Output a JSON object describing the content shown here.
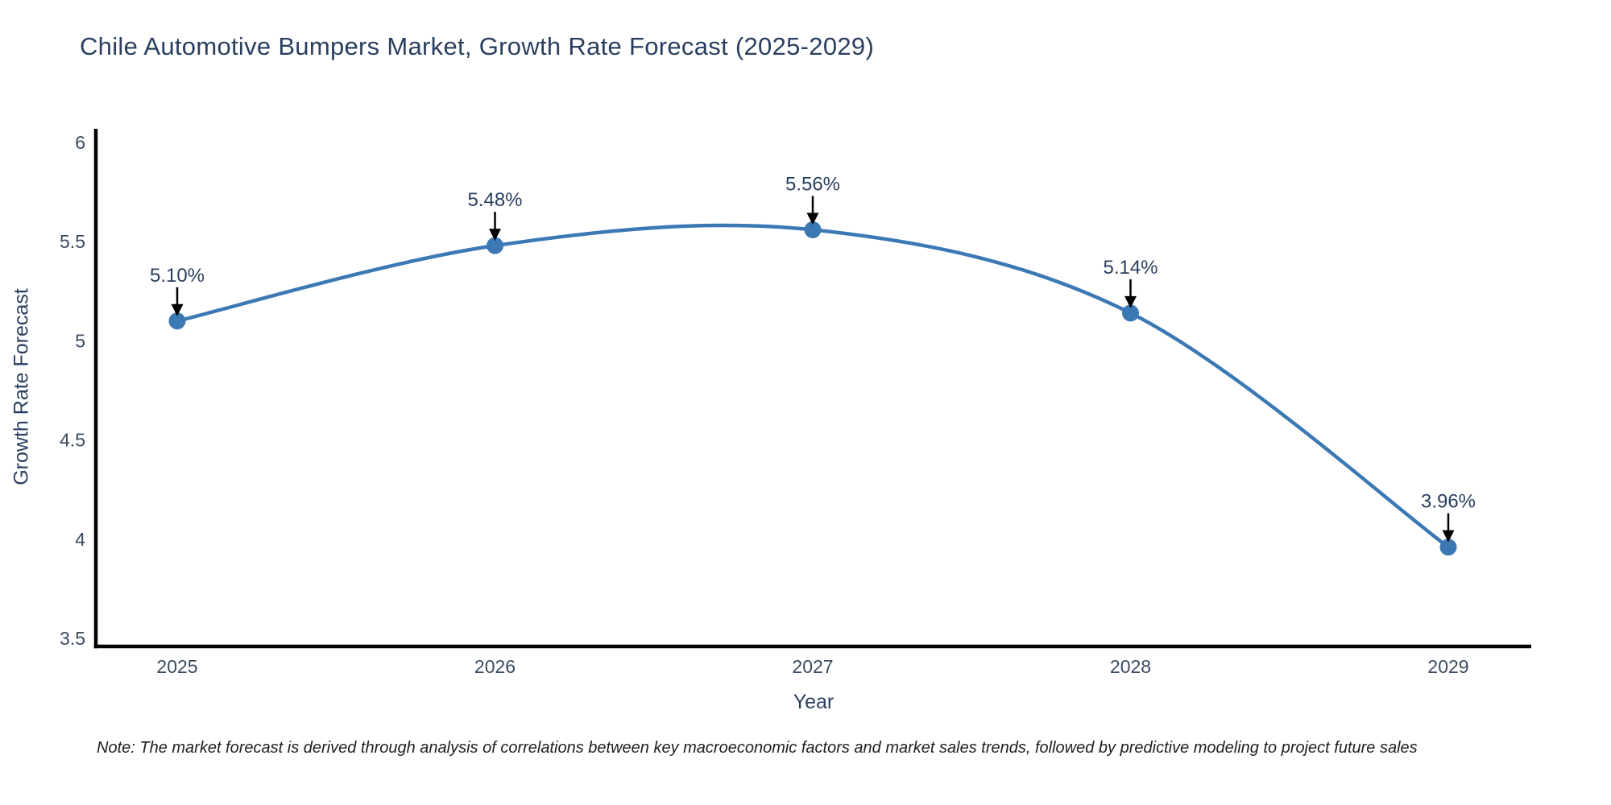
{
  "page": {
    "background": "#ffffff"
  },
  "chart_data": {
    "type": "line",
    "title": "Chile Automotive Bumpers Market, Growth Rate Forecast (2025-2029)",
    "xlabel": "Year",
    "ylabel": "Growth Rate Forecast",
    "categories": [
      "2025",
      "2026",
      "2027",
      "2028",
      "2029"
    ],
    "values": [
      5.1,
      5.48,
      5.56,
      5.14,
      3.96
    ],
    "point_labels": [
      "5.10%",
      "5.48%",
      "5.56%",
      "5.14%",
      "3.96%"
    ],
    "ylim": [
      3.5,
      6
    ],
    "yticks": [
      3.5,
      4,
      4.5,
      5,
      5.5,
      6
    ],
    "ytick_labels": [
      "3.5",
      "4",
      "4.5",
      "5",
      "5.5",
      "6"
    ],
    "line_shape": "spline",
    "grid": false,
    "legend": false,
    "line_color": "#3c79b4",
    "marker_color": "#3c79b4",
    "axis_color": "#000000",
    "annotation_arrow_color": "#000000",
    "text_color": "#2a3f5f"
  },
  "footnote": {
    "text": "Note: The market forecast is derived through analysis of correlations between key macroeconomic factors and market sales trends, followed by predictive modeling to project future sales"
  }
}
